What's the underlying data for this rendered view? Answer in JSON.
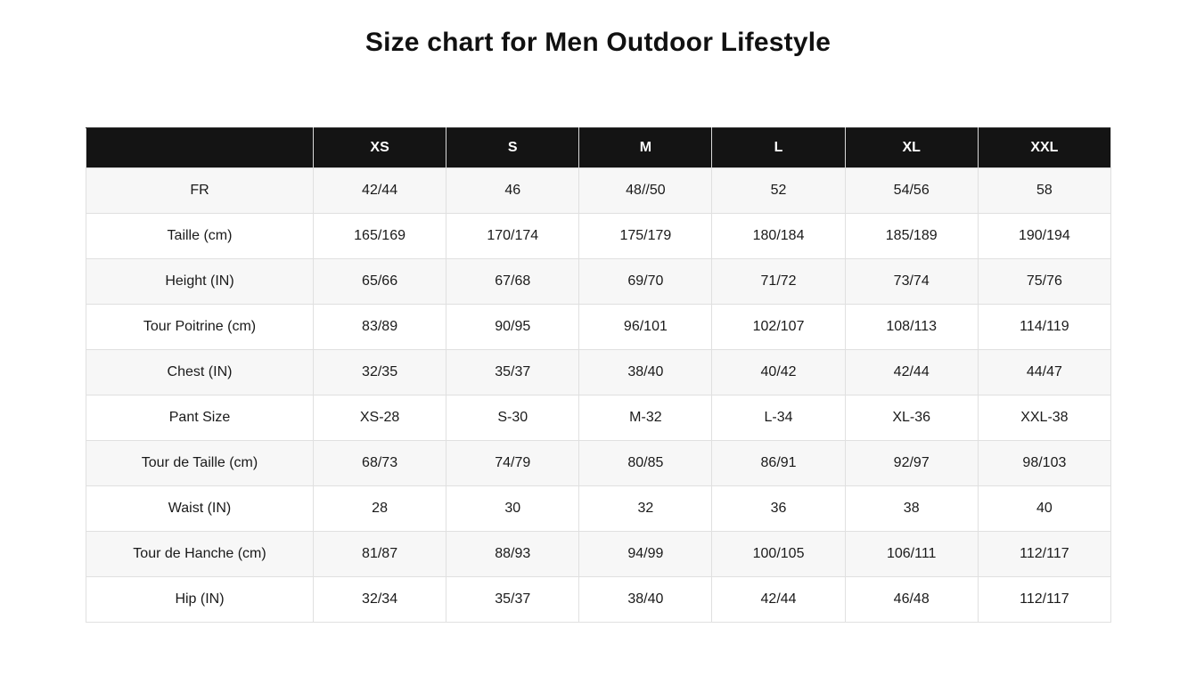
{
  "page": {
    "title": "Size chart for Men Outdoor Lifestyle"
  },
  "table": {
    "columns": [
      "",
      "XS",
      "S",
      "M",
      "L",
      "XL",
      "XXL"
    ],
    "rows": [
      {
        "label": "FR",
        "values": [
          "42/44",
          "46",
          "48//50",
          "52",
          "54/56",
          "58"
        ]
      },
      {
        "label": "Taille (cm)",
        "values": [
          "165/169",
          "170/174",
          "175/179",
          "180/184",
          "185/189",
          "190/194"
        ]
      },
      {
        "label": "Height (IN)",
        "values": [
          "65/66",
          "67/68",
          "69/70",
          "71/72",
          "73/74",
          "75/76"
        ]
      },
      {
        "label": "Tour Poitrine (cm)",
        "values": [
          "83/89",
          "90/95",
          "96/101",
          "102/107",
          "108/113",
          "114/119"
        ]
      },
      {
        "label": "Chest (IN)",
        "values": [
          "32/35",
          "35/37",
          "38/40",
          "40/42",
          "42/44",
          "44/47"
        ]
      },
      {
        "label": "Pant Size",
        "values": [
          "XS-28",
          "S-30",
          "M-32",
          "L-34",
          "XL-36",
          "XXL-38"
        ]
      },
      {
        "label": "Tour de Taille (cm)",
        "values": [
          "68/73",
          "74/79",
          "80/85",
          "86/91",
          "92/97",
          "98/103"
        ]
      },
      {
        "label": "Waist (IN)",
        "values": [
          "28",
          "30",
          "32",
          "36",
          "38",
          "40"
        ]
      },
      {
        "label": "Tour de Hanche (cm)",
        "values": [
          "81/87",
          "88/93",
          "94/99",
          "100/105",
          "106/111",
          "112/117"
        ]
      },
      {
        "label": "Hip (IN)",
        "values": [
          "32/34",
          "35/37",
          "38/40",
          "42/44",
          "46/48",
          "112/117"
        ]
      }
    ]
  },
  "colors": {
    "header_bg": "#141414",
    "header_text": "#ffffff",
    "row_alt_bg": "#f7f7f7",
    "row_bg": "#ffffff",
    "border": "#e0e0e0",
    "text": "#1a1a1a"
  }
}
